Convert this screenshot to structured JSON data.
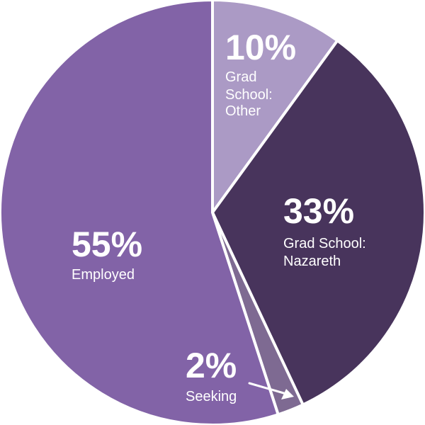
{
  "chart_data": {
    "type": "pie",
    "slices": [
      {
        "value": 10,
        "percent_label": "10%",
        "label_lines": [
          "Grad",
          "School:",
          "Other"
        ],
        "color": "#ab9ac5"
      },
      {
        "value": 33,
        "percent_label": "33%",
        "label_lines": [
          "Grad School:",
          "Nazareth"
        ],
        "color": "#48345c"
      },
      {
        "value": 2,
        "percent_label": "2%",
        "label_lines": [
          "Seeking"
        ],
        "color": "#7e6a92"
      },
      {
        "value": 55,
        "percent_label": "55%",
        "label_lines": [
          "Employed"
        ],
        "color": "#8263a7"
      }
    ],
    "legend": "none",
    "slice_separator_color": "#ffffff",
    "label_text_color": "#ffffff",
    "small_slice_label": "outside-with-arrow"
  }
}
